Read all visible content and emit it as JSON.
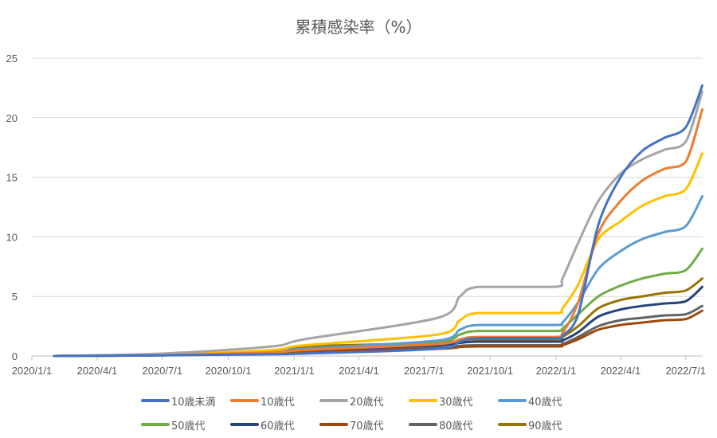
{
  "chart_data": {
    "type": "line",
    "title": "累積感染率（%）",
    "xlabel": "",
    "ylabel": "",
    "ylim": [
      0,
      25
    ],
    "yticks": [
      "0",
      "5",
      "10",
      "15",
      "20",
      "25"
    ],
    "xticks": [
      "2020/1/1",
      "2020/4/1",
      "2020/7/1",
      "2020/10/1",
      "2021/1/1",
      "2021/4/1",
      "2021/7/1",
      "2021/10/1",
      "2022/1/1",
      "2022/4/1",
      "2022/7/1"
    ],
    "grid": true,
    "legend_position": "bottom",
    "x": [
      "2020/2/1",
      "2020/7/1",
      "2020/12/1",
      "2021/1/15",
      "2021/7/20",
      "2021/8/20",
      "2021/9/15",
      "2021/12/31",
      "2022/1/10",
      "2022/2/1",
      "2022/3/1",
      "2022/4/1",
      "2022/5/1",
      "2022/6/1",
      "2022/7/1",
      "2022/7/24"
    ],
    "series": [
      {
        "name": "10歳未満",
        "color": "#4472C4",
        "values": [
          0,
          0.05,
          0.15,
          0.2,
          0.6,
          1.2,
          1.5,
          1.5,
          1.7,
          3.5,
          11.0,
          15.0,
          17.2,
          18.3,
          19.2,
          22.7
        ]
      },
      {
        "name": "10歳代",
        "color": "#ED7D31",
        "values": [
          0,
          0.08,
          0.3,
          0.5,
          1.0,
          1.4,
          1.6,
          1.6,
          1.9,
          4.5,
          10.3,
          13.0,
          14.7,
          15.7,
          16.3,
          20.7
        ]
      },
      {
        "name": "20歳代",
        "color": "#A5A5A5",
        "values": [
          0,
          0.2,
          0.8,
          1.4,
          3.2,
          5.0,
          5.8,
          5.8,
          6.5,
          9.5,
          13.0,
          15.3,
          16.5,
          17.3,
          18.0,
          22.2
        ]
      },
      {
        "name": "30歳代",
        "color": "#FFC000",
        "values": [
          0,
          0.1,
          0.5,
          0.9,
          1.8,
          3.0,
          3.6,
          3.6,
          4.0,
          6.0,
          9.8,
          11.3,
          12.6,
          13.4,
          14.0,
          17.0
        ]
      },
      {
        "name": "40歳代",
        "color": "#5B9BD5",
        "values": [
          0,
          0.08,
          0.35,
          0.6,
          1.3,
          2.2,
          2.6,
          2.6,
          2.8,
          4.5,
          7.3,
          8.8,
          9.8,
          10.4,
          10.9,
          13.4
        ]
      },
      {
        "name": "50歳代",
        "color": "#70AD47",
        "values": [
          0,
          0.08,
          0.35,
          0.6,
          1.2,
          1.8,
          2.1,
          2.1,
          2.3,
          3.5,
          5.0,
          5.9,
          6.5,
          6.9,
          7.2,
          9.0
        ]
      },
      {
        "name": "60歳代",
        "color": "#264478",
        "values": [
          0,
          0.07,
          0.3,
          0.5,
          0.9,
          1.1,
          1.2,
          1.2,
          1.3,
          2.0,
          3.3,
          3.9,
          4.2,
          4.4,
          4.6,
          5.8
        ]
      },
      {
        "name": "70歳代",
        "color": "#9E480E",
        "values": [
          0,
          0.06,
          0.25,
          0.4,
          0.6,
          0.75,
          0.8,
          0.8,
          0.9,
          1.4,
          2.2,
          2.6,
          2.8,
          3.0,
          3.1,
          3.8
        ]
      },
      {
        "name": "80歳代",
        "color": "#636363",
        "values": [
          0,
          0.08,
          0.35,
          0.6,
          0.7,
          0.85,
          0.9,
          0.9,
          1.0,
          1.6,
          2.5,
          3.0,
          3.2,
          3.4,
          3.5,
          4.2
        ]
      },
      {
        "name": "90歳代",
        "color": "#997300",
        "values": [
          0,
          0.1,
          0.45,
          0.8,
          1.1,
          1.3,
          1.4,
          1.4,
          1.6,
          2.5,
          4.0,
          4.7,
          5.0,
          5.3,
          5.5,
          6.5
        ]
      }
    ]
  }
}
